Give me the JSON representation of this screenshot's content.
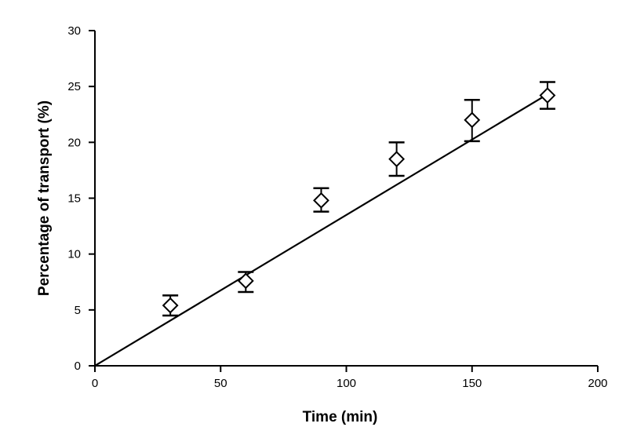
{
  "chart_data": {
    "type": "scatter",
    "title": "",
    "xlabel": "Time (min)",
    "ylabel": "Percentage of transport (%)",
    "xlim": [
      0,
      200
    ],
    "ylim": [
      0,
      30
    ],
    "xticks": [
      0,
      50,
      100,
      150,
      200
    ],
    "yticks": [
      0,
      5,
      10,
      15,
      20,
      25,
      30
    ],
    "xtick_labels": [
      "0",
      "50",
      "100",
      "150",
      "200"
    ],
    "ytick_labels": [
      "0",
      "5",
      "10",
      "15",
      "20",
      "25",
      "30"
    ],
    "grid": false,
    "legend": "none",
    "series": [
      {
        "marker": "open-diamond",
        "x": [
          30,
          60,
          90,
          120,
          150,
          180
        ],
        "y": [
          5.4,
          7.6,
          14.8,
          18.5,
          22.0,
          24.2
        ],
        "error_low": [
          4.5,
          6.6,
          13.8,
          17.0,
          20.1,
          23.0
        ],
        "error_high": [
          6.3,
          8.4,
          15.9,
          20.0,
          23.8,
          25.4
        ]
      }
    ],
    "fit_line": {
      "type": "linear",
      "x": [
        0,
        180
      ],
      "y": [
        0,
        24.3
      ]
    },
    "colors": {
      "axis": "#000000",
      "marker_stroke": "#000000",
      "marker_fill": "#ffffff",
      "line": "#000000"
    }
  }
}
